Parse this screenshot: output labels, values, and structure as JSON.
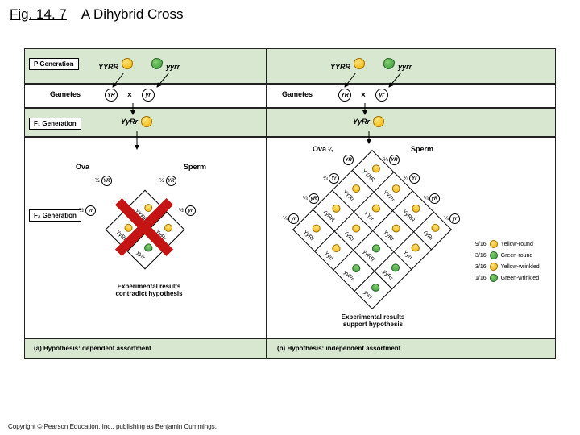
{
  "figure": {
    "title_prefix": "Fig. 14. 7",
    "title_main": "A Dihybrid Cross",
    "copyright": "Copyright © Pearson Education, Inc., publishing as Benjamin Cummings."
  },
  "labels": {
    "p_gen": "P Generation",
    "f1_gen": "F₁ Generation",
    "f2_gen": "F₂ Generation",
    "gametes": "Gametes",
    "ova": "Ova",
    "sperm": "Sperm"
  },
  "genotypes": {
    "p1": "YYRR",
    "p2": "yyrr",
    "f1": "YyRr",
    "YR": "YR",
    "yr": "yr",
    "Yr": "Yr",
    "yR": "yR"
  },
  "fractions": {
    "half": "½",
    "quarter": "¼",
    "r9_16": "9/16",
    "r3_16": "3/16",
    "r1_16": "1/16"
  },
  "punnett_a": {
    "cells": [
      [
        "YYRR",
        "YyRr"
      ],
      [
        "YyRr",
        "yyrr"
      ]
    ]
  },
  "punnett_b": {
    "cells": [
      [
        "YYRR",
        "YYRr",
        "YyRR",
        "YyRr"
      ],
      [
        "YYRr",
        "YYrr",
        "YyRr",
        "Yyrr"
      ],
      [
        "YyRR",
        "YyRr",
        "yyRR",
        "yyRr"
      ],
      [
        "YyRr",
        "Yyrr",
        "yyRr",
        "yyrr"
      ]
    ]
  },
  "captions": {
    "result_a": "Experimental results contradict hypothesis",
    "result_b": "Experimental results support hypothesis",
    "panel_a": "(a) Hypothesis: dependent assortment",
    "panel_b": "(b) Hypothesis: independent assortment"
  },
  "legend": {
    "yr": "Yellow-round",
    "gr": "Green-round",
    "yw": "Yellow-wrinkled",
    "gw": "Green-wrinkled"
  },
  "colors": {
    "band_green": "#d8e8d0",
    "yellow": "#f2b300",
    "green": "#3a9a3e",
    "red_x": "#c41414",
    "border": "#222222"
  }
}
